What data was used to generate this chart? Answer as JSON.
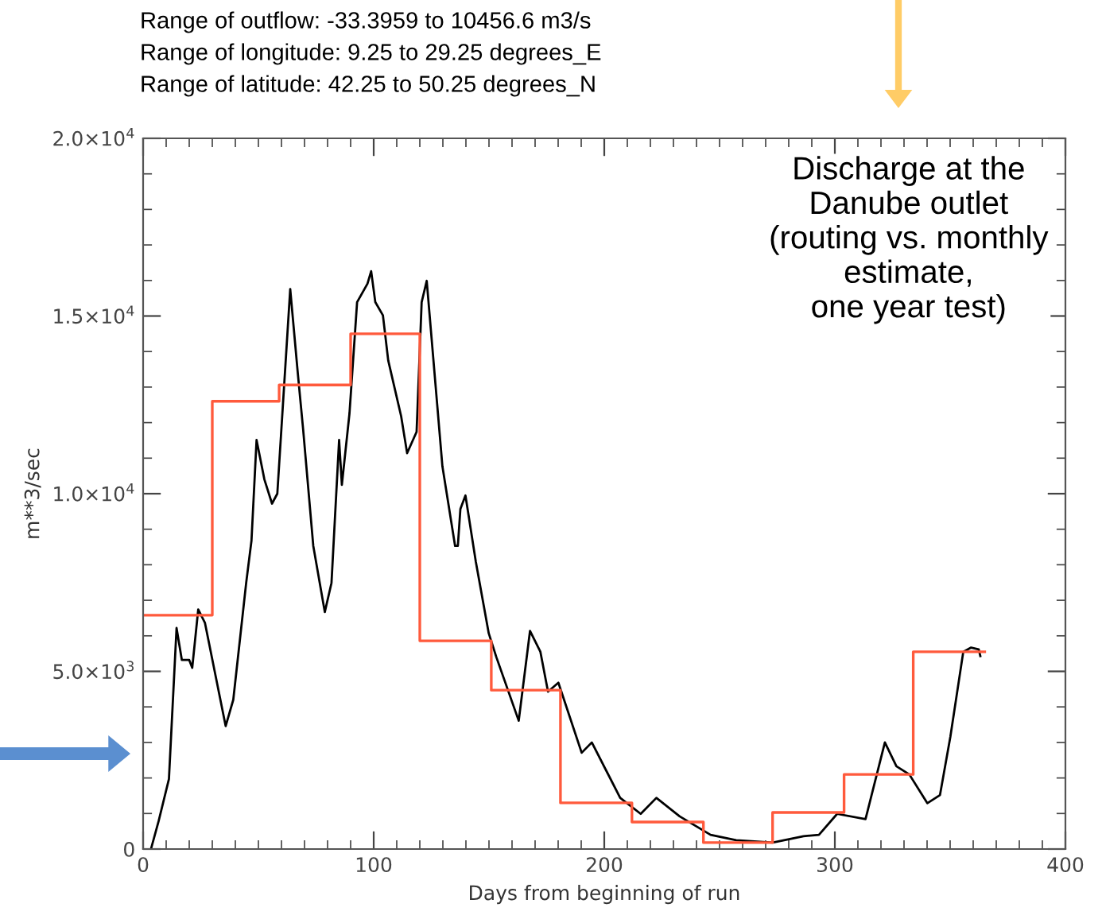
{
  "chart_data": {
    "type": "line",
    "title": "Discharge at the\nDanube outlet\n(routing vs. monthly\nestimate,\none year test)",
    "xlabel": "Days from beginning of run",
    "ylabel": "m**3/sec",
    "annotations": [
      "Range of outflow: -33.3959 to 10456.6 m3/s",
      "Range of longitude: 9.25 to 29.25 degrees_E",
      "Range of latitude: 42.25 to 50.25 degrees_N"
    ],
    "xlim": [
      0,
      400
    ],
    "xticks": [
      0,
      100,
      200,
      300,
      {
        "value": 400,
        "label": "400"
      }
    ],
    "ylim": [
      0,
      20000
    ],
    "yticks": [
      0,
      {
        "value": 5000,
        "label": "5.0×10$^{3}$"
      },
      {
        "value": 10000,
        "label": "1.0×10$^{4}$"
      },
      {
        "value": 15000,
        "label": "1.5×10$^{4}$"
      },
      {
        "value": 20000,
        "label": "2.0×10$^{4}$"
      }
    ],
    "grid": false,
    "legend": false,
    "series": [
      {
        "color": "#000000",
        "x": [
          3.4,
          6.7,
          11.2,
          14.5,
          16.8,
          20,
          21.3,
          23.9,
          26.8,
          35.8,
          39.1,
          44.7,
          47,
          49.2,
          52.6,
          55.9,
          58.2,
          63.8,
          67.1,
          69.4,
          73.8,
          78.8,
          81.7,
          85,
          86.2,
          89.5,
          92.8,
          97.3,
          98.9,
          100.7,
          104,
          106.3,
          111.9,
          114.5,
          118.6,
          120.8,
          123,
          129.8,
          135.3,
          136.5,
          137.6,
          139.8,
          144.3,
          149.9,
          153.2,
          162.9,
          167.8,
          172.3,
          175.6,
          180.1,
          190.2,
          194.6,
          206.9,
          215.8,
          222.6,
          232.7,
          246.1,
          257.2,
          273,
          286.4,
          293.1,
          301,
          313.3,
          321.7,
          326.7,
          332.3,
          340.1,
          345.6,
          350.1,
          355.7,
          359.1,
          362.4,
          363.1
        ],
        "values": [
          0,
          780,
          1970,
          6220,
          5320,
          5320,
          5100,
          6740,
          6370,
          3460,
          4200,
          7490,
          8680,
          11510,
          10400,
          9720,
          10000,
          15760,
          13380,
          11810,
          8530,
          6670,
          7490,
          11510,
          10250,
          12260,
          15390,
          15910,
          16260,
          15390,
          15020,
          13750,
          12180,
          11140,
          11740,
          15390,
          15990,
          10770,
          8530,
          8530,
          9570,
          9950,
          8080,
          6070,
          5400,
          3610,
          6140,
          5550,
          4430,
          4680,
          2710,
          3000,
          1440,
          990,
          1440,
          920,
          400,
          250,
          180,
          360,
          400,
          990,
          840,
          3000,
          2330,
          2100,
          1290,
          1520,
          3160,
          5550,
          5670,
          5620,
          5430
        ]
      },
      {
        "type": "step",
        "color": "#ff5a3c",
        "x": [
          0,
          30,
          59,
          90,
          120,
          151,
          181,
          212,
          243,
          273,
          304,
          334,
          365
        ],
        "values": [
          6580,
          12600,
          13060,
          14500,
          5860,
          4470,
          1300,
          760,
          180,
          1030,
          2100,
          5550,
          5550
        ]
      }
    ]
  }
}
